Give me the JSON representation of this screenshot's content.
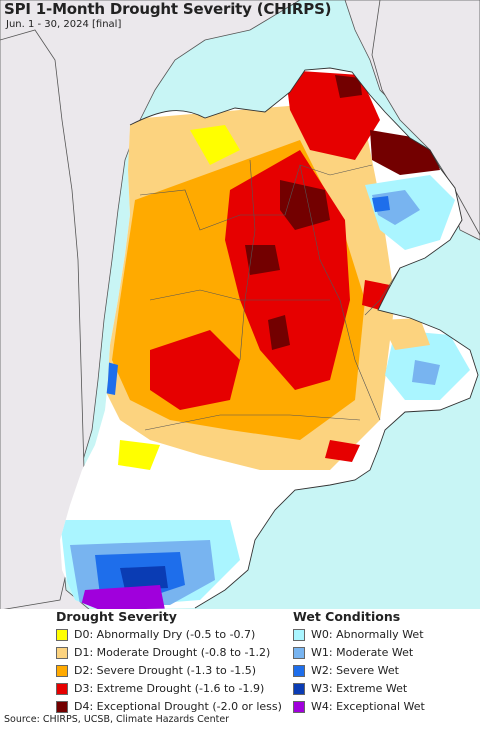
{
  "header": {
    "title": "SPI 1-Month Drought Severity (CHIRPS)",
    "subtitle": "Jun. 1 - 30, 2024 [final]"
  },
  "colors": {
    "ocean": "#c8f5f5",
    "outside_land": "#ebe8ec",
    "normal": "#ffffff",
    "D0": "#ffff00",
    "D1": "#fcd37f",
    "D2": "#ffaa00",
    "D3": "#e60000",
    "D4": "#730000",
    "W0": "#aaf5ff",
    "W1": "#78b4f0",
    "W2": "#1e6eeb",
    "W3": "#0a3cb4",
    "W4": "#a000dc"
  },
  "legend": {
    "drought_title": "Drought Severity",
    "wet_title": "Wet Conditions",
    "drought_items": [
      {
        "code": "D0",
        "label": "D0: Abnormally Dry (-0.5 to -0.7)",
        "color": "#ffff00"
      },
      {
        "code": "D1",
        "label": "D1: Moderate Drought (-0.8 to -1.2)",
        "color": "#fcd37f"
      },
      {
        "code": "D2",
        "label": "D2: Severe Drought (-1.3 to -1.5)",
        "color": "#ffaa00"
      },
      {
        "code": "D3",
        "label": "D3: Extreme Drought (-1.6 to -1.9)",
        "color": "#e60000"
      },
      {
        "code": "D4",
        "label": "D4: Exceptional Drought (-2.0 or less)",
        "color": "#730000"
      }
    ],
    "wet_items": [
      {
        "code": "W0",
        "label": "W0: Abnormally Wet",
        "color": "#aaf5ff"
      },
      {
        "code": "W1",
        "label": "W1: Moderate Wet",
        "color": "#78b4f0"
      },
      {
        "code": "W2",
        "label": "W2: Severe Wet",
        "color": "#1e6eeb"
      },
      {
        "code": "W3",
        "label": "W3: Extreme Wet",
        "color": "#0a3cb4"
      },
      {
        "code": "W4",
        "label": "W4: Exceptional Wet",
        "color": "#a000dc"
      }
    ]
  },
  "footer": {
    "source": "Source: CHIRPS, UCSB, Climate Hazards Center"
  }
}
